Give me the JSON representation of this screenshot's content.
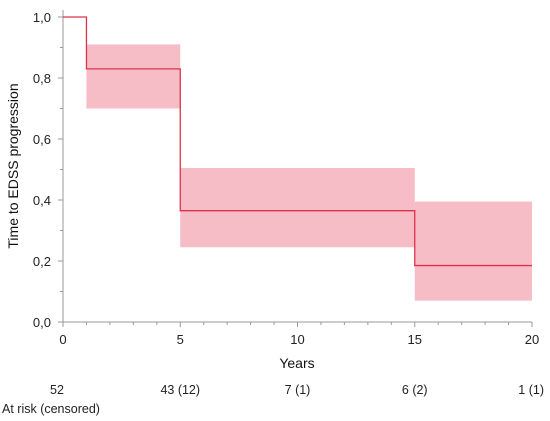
{
  "chart_data": {
    "type": "line",
    "subtype": "kaplan-meier step curve with confidence band",
    "xlabel": "Years",
    "ylabel": "Time to EDSS progression",
    "xlim": [
      0,
      20
    ],
    "ylim": [
      0,
      1
    ],
    "x_ticks": [
      "0",
      "5",
      "10",
      "15",
      "20"
    ],
    "y_ticks": [
      "0,0",
      "0,2",
      "0,4",
      "0,6",
      "0,8",
      "1,0"
    ],
    "grid": false,
    "series": [
      {
        "steps": [
          {
            "x_start": 0,
            "x_end": 1,
            "y": 1.0,
            "ci_low": 1.0,
            "ci_high": 1.0
          },
          {
            "x_start": 1,
            "x_end": 5,
            "y": 0.83,
            "ci_low": 0.7,
            "ci_high": 0.91
          },
          {
            "x_start": 5,
            "x_end": 15,
            "y": 0.365,
            "ci_low": 0.245,
            "ci_high": 0.505
          },
          {
            "x_start": 15,
            "x_end": 20,
            "y": 0.185,
            "ci_low": 0.07,
            "ci_high": 0.395
          }
        ],
        "line_color": "#e0314a",
        "band_color": "#f4a7b4"
      }
    ],
    "at_risk": {
      "label": "At risk (censored)",
      "entries": [
        {
          "x": 0,
          "text": "52"
        },
        {
          "x": 5,
          "text": "43 (12)"
        },
        {
          "x": 10,
          "text": "7 (1)"
        },
        {
          "x": 15,
          "text": "6 (2)"
        },
        {
          "x": 20,
          "text": "1 (1)"
        }
      ]
    }
  }
}
